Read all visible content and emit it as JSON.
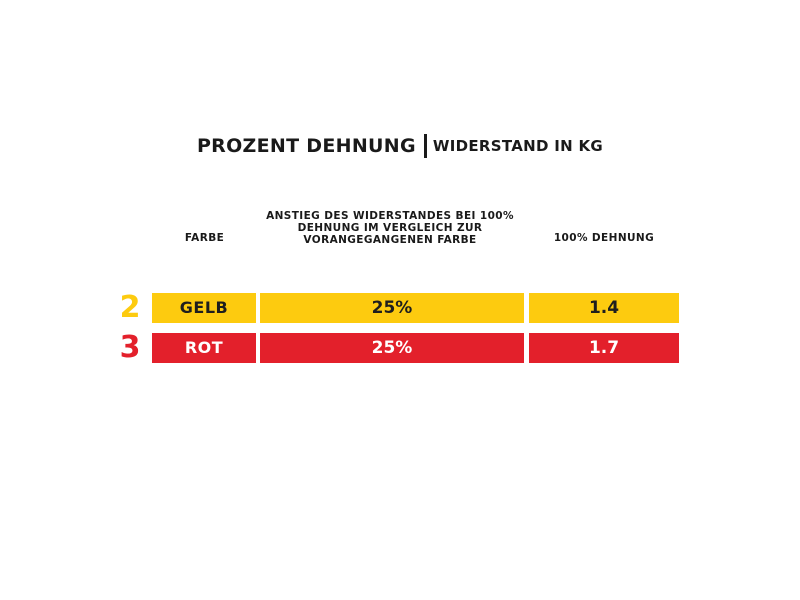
{
  "title": {
    "main": "PROZENT DEHNUNG",
    "sub": "WIDERSTAND IN KG"
  },
  "headers": {
    "farbe": "FARBE",
    "anstieg_lines": [
      "ANSTIEG DES WIDERSTANDES BEI 100%",
      "DEHNUNG IM VERGLEICH ZUR",
      "VORANGEGANGENEN FARBE"
    ],
    "dehnung": "100% DEHNUNG"
  },
  "rows": [
    {
      "number": "2",
      "farbe": "GELB",
      "anstieg": "25%",
      "dehnung": "1.4",
      "color": "#fdcb0f"
    },
    {
      "number": "3",
      "farbe": "ROT",
      "anstieg": "25%",
      "dehnung": "1.7",
      "color": "#e3202b"
    }
  ],
  "colors": {
    "yellow": "#fdcb0f",
    "red": "#e3202b",
    "text": "#1a1a1a"
  }
}
